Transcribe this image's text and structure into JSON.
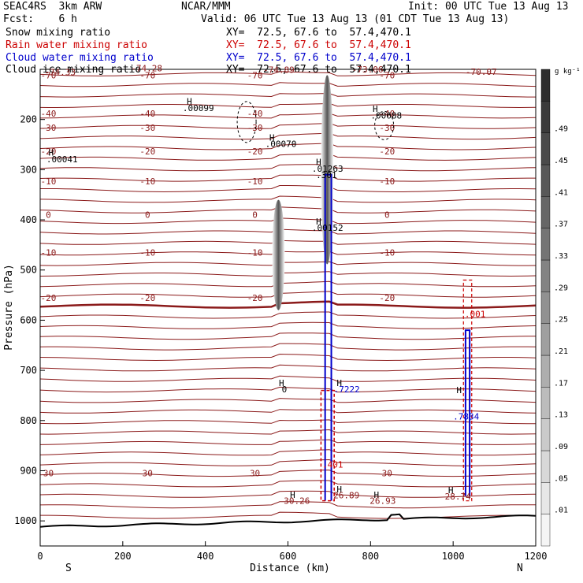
{
  "header": {
    "model": "SEAC4RS  3km ARW",
    "org": "NCAR/MMM",
    "init": "Init: 00 UTC Tue 13 Aug 13",
    "fcst": "Fcst:    6 h",
    "valid": "Valid: 06 UTC Tue 13 Aug 13 (01 CDT Tue 13 Aug 13)",
    "fields": [
      {
        "name": "Snow mixing ratio",
        "xy": "XY=  72.5, 67.6 to  57.4,470.1",
        "color": "#000000"
      },
      {
        "name": "Rain water mixing ratio",
        "xy": "XY=  72.5, 67.6 to  57.4,470.1",
        "color": "#cc0000"
      },
      {
        "name": "Cloud water mixing ratio",
        "xy": "XY=  72.5, 67.6 to  57.4,470.1",
        "color": "#0000cc"
      },
      {
        "name": "Cloud ice mixing ratio",
        "xy": "XY=  72.5, 67.6 to  57.4,470.1",
        "color": "#000000"
      }
    ]
  },
  "chart_data": {
    "type": "cross-section",
    "xlabel": "Distance (km)",
    "ylabel": "Pressure (hPa)",
    "xlim": [
      0,
      1200
    ],
    "ylim": [
      1050,
      100
    ],
    "x_ticks": [
      0,
      200,
      400,
      600,
      800,
      1000,
      1200
    ],
    "y_ticks": [
      200,
      300,
      400,
      500,
      600,
      700,
      800,
      900,
      1000
    ],
    "endpoints": {
      "left": "S",
      "right": "N"
    },
    "colorbar": {
      "unit": "g kg⁻¹",
      "labels": [
        ".01",
        ".05",
        ".09",
        ".13",
        ".17",
        ".21",
        ".25",
        ".29",
        ".33",
        ".37",
        ".41",
        ".45",
        ".49"
      ]
    },
    "temperature_contours": [
      {
        "label": "-70",
        "p": 112
      },
      {
        "label": "-40",
        "p": 188
      },
      {
        "label": "-30",
        "p": 216
      },
      {
        "label": "-20",
        "p": 263
      },
      {
        "label": "-10",
        "p": 323
      },
      {
        "label": "0",
        "p": 390
      },
      {
        "label": "-10",
        "p": 465
      },
      {
        "label": "-20",
        "p": 555
      },
      {
        "label": "30",
        "p": 905
      }
    ],
    "text_annotations": [
      {
        "text": "-74.33",
        "x": 10,
        "p": 112
      },
      {
        "text": "-74.28",
        "x": 220,
        "p": 104
      },
      {
        "text": "-74.89",
        "x": 540,
        "p": 107
      },
      {
        "text": "-73.06",
        "x": 755,
        "p": 106
      },
      {
        "text": "-70.07",
        "x": 1030,
        "p": 111
      },
      {
        "text": "H",
        "x": 355,
        "p": 170
      },
      {
        "text": ".00099",
        "x": 345,
        "p": 183
      },
      {
        "text": "H",
        "x": 555,
        "p": 242
      },
      {
        "text": ".00070",
        "x": 545,
        "p": 255
      },
      {
        "text": "H",
        "x": 20,
        "p": 272
      },
      {
        "text": ".00041",
        "x": 15,
        "p": 285
      },
      {
        "text": "H",
        "x": 805,
        "p": 185
      },
      {
        "text": ".00688",
        "x": 800,
        "p": 198
      },
      {
        "text": "H",
        "x": 668,
        "p": 291
      },
      {
        "text": ".01263",
        "x": 658,
        "p": 304
      },
      {
        "text": ".301",
        "x": 668,
        "p": 317
      },
      {
        "text": "H",
        "x": 668,
        "p": 409
      },
      {
        "text": ".00152",
        "x": 658,
        "p": 422
      },
      {
        "text": "H",
        "x": 578,
        "p": 731
      },
      {
        "text": "0",
        "x": 585,
        "p": 744
      },
      {
        "text": "H",
        "x": 718,
        "p": 731
      },
      {
        "text": ".7222",
        "x": 711,
        "p": 744
      },
      {
        "text": ".001",
        "x": 1028,
        "p": 594
      },
      {
        "text": "H",
        "x": 605,
        "p": 954
      },
      {
        "text": "30.26",
        "x": 590,
        "p": 966
      },
      {
        "text": "H",
        "x": 718,
        "p": 943
      },
      {
        "text": "26.89",
        "x": 710,
        "p": 955
      },
      {
        "text": "H",
        "x": 808,
        "p": 954
      },
      {
        "text": "26.93",
        "x": 798,
        "p": 966
      },
      {
        "text": "H",
        "x": 988,
        "p": 945
      },
      {
        "text": "28.74",
        "x": 980,
        "p": 957
      },
      {
        "text": ".401",
        "x": 683,
        "p": 894
      },
      {
        "text": "H",
        "x": 1008,
        "p": 745
      },
      {
        "text": ".7834",
        "x": 1000,
        "p": 798
      }
    ]
  }
}
